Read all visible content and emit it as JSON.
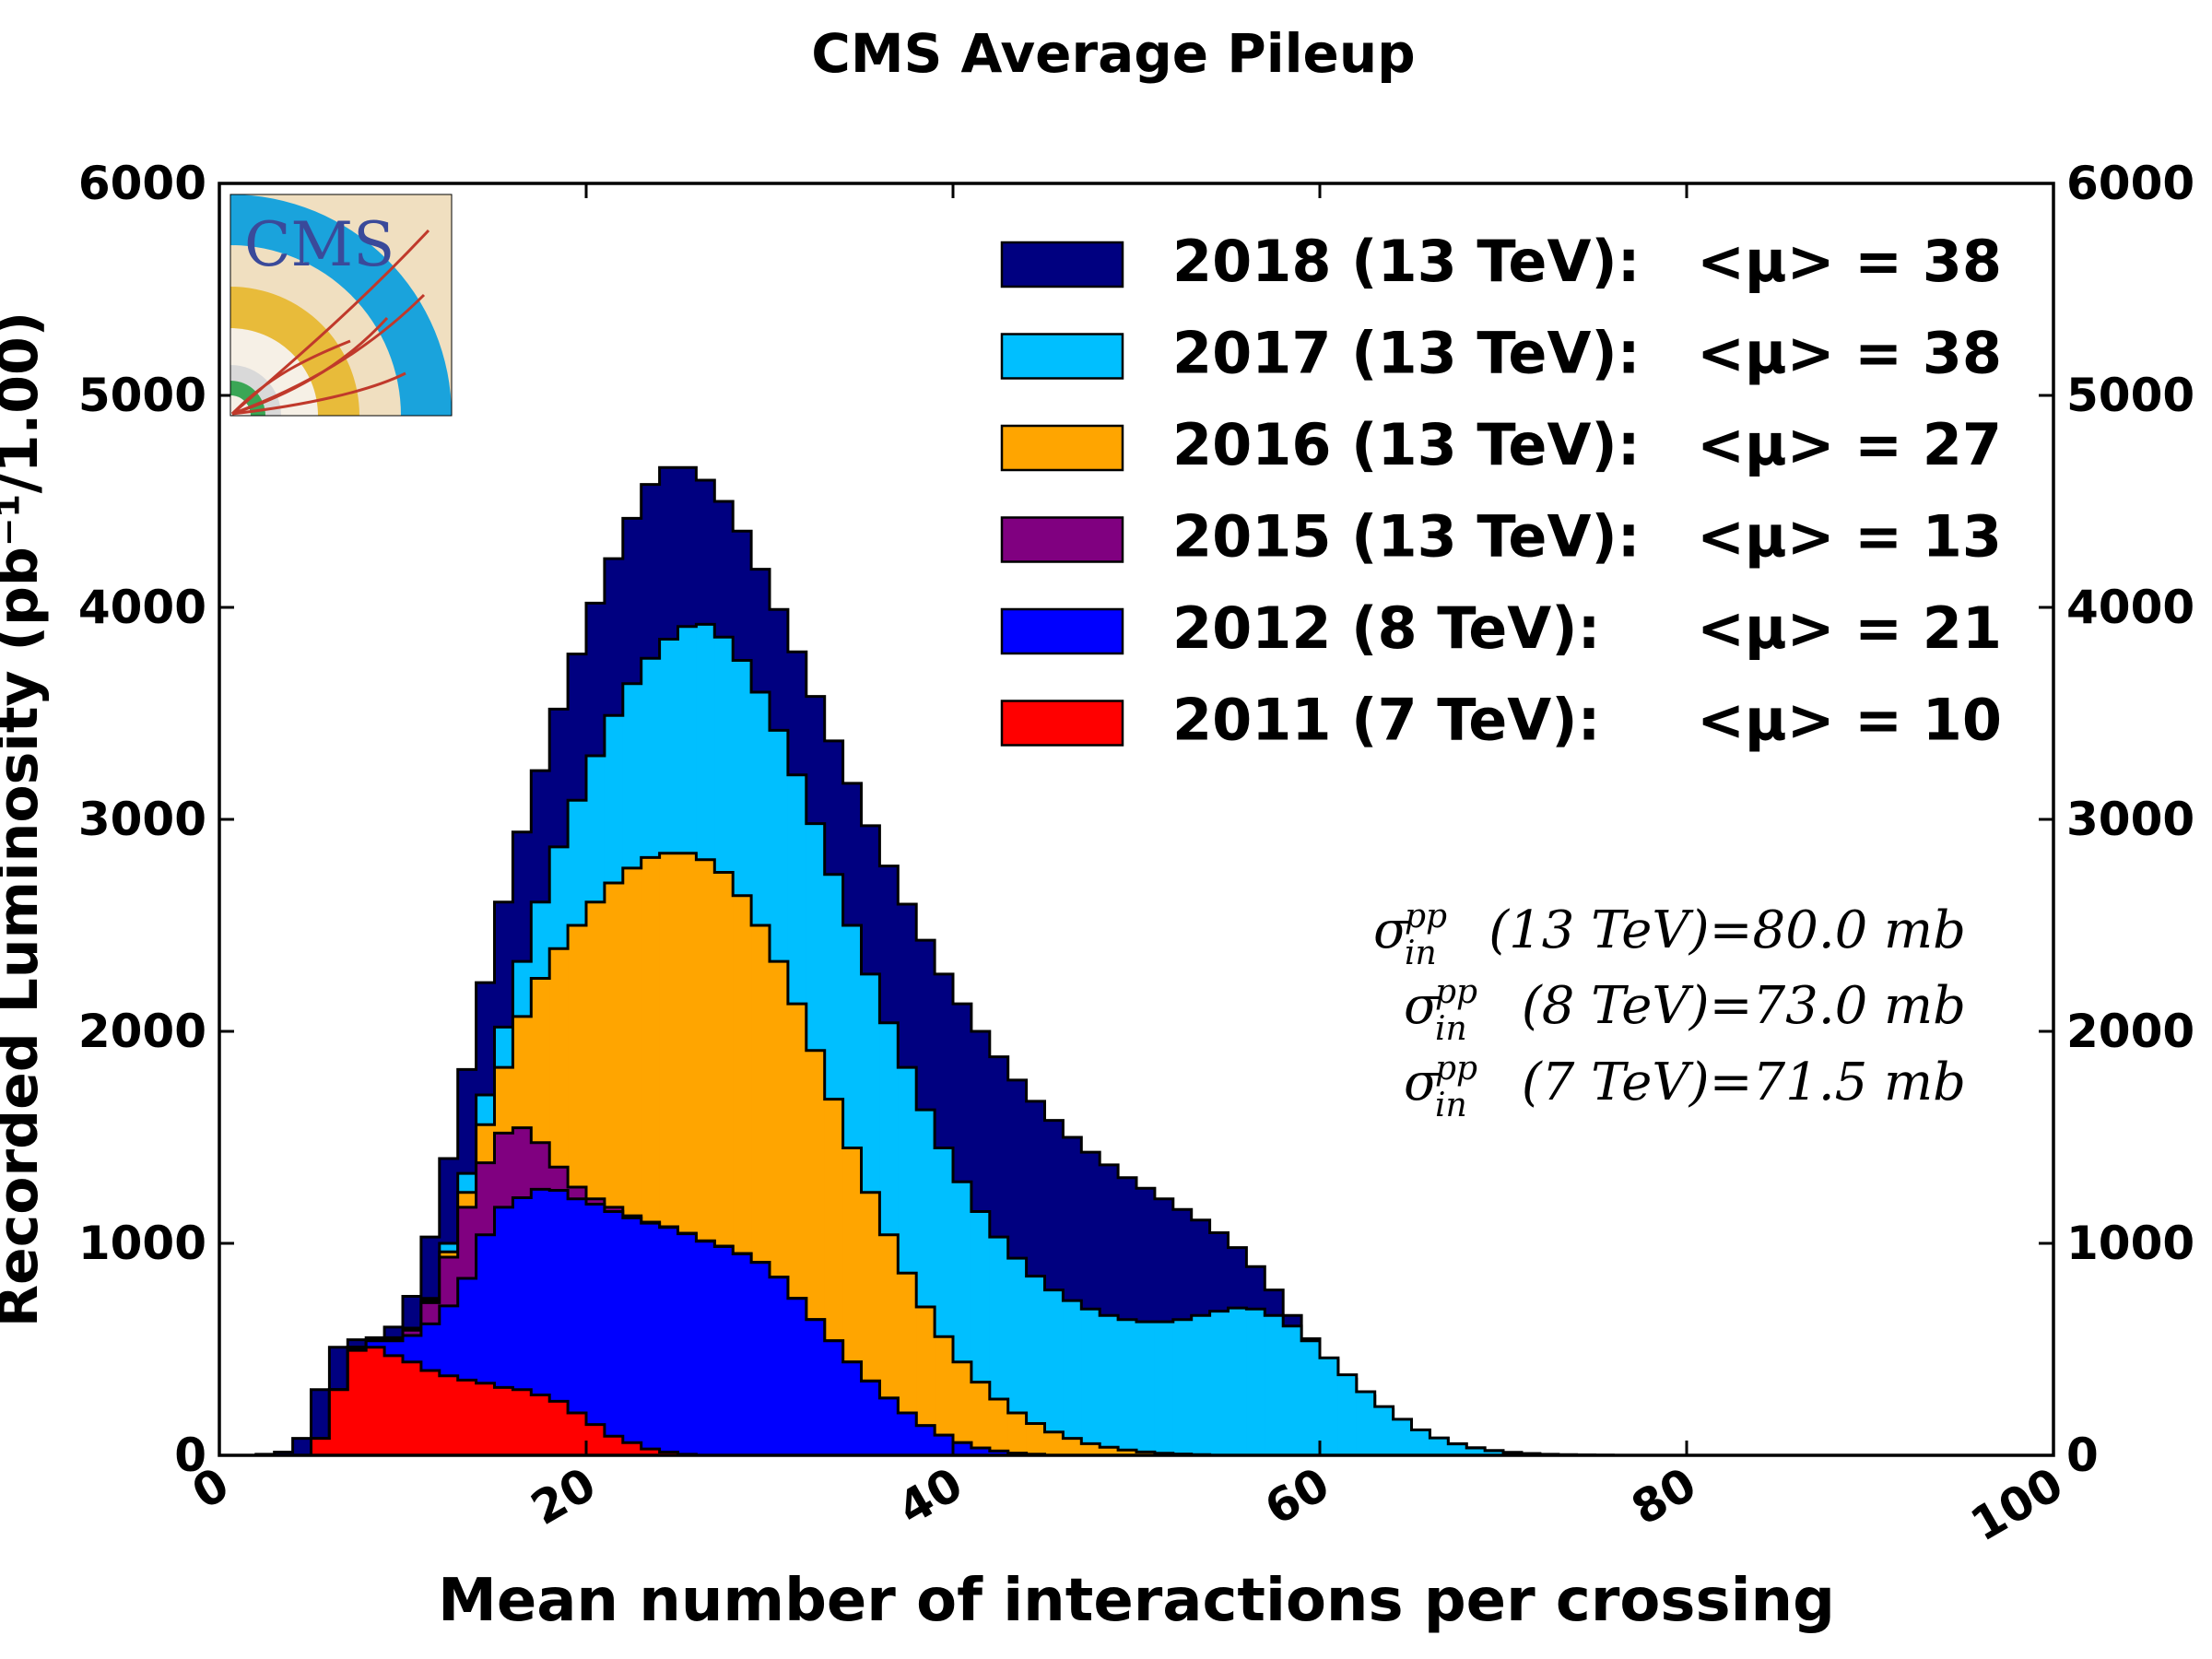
{
  "chart_data": {
    "type": "area",
    "title": "CMS Average Pileup",
    "xlabel": "Mean number of interactions per crossing",
    "ylabel": "Recorded Luminosity (pb⁻¹/1.00)",
    "xlim": [
      0,
      100
    ],
    "ylim": [
      0,
      6000
    ],
    "x_ticks": [
      "0",
      "20",
      "40",
      "60",
      "80",
      "100"
    ],
    "y_ticks": [
      "0",
      "1000",
      "2000",
      "3000",
      "4000",
      "5000",
      "6000"
    ],
    "y_ticks_right": [
      "0",
      "1000",
      "2000",
      "3000",
      "4000",
      "5000",
      "6000"
    ],
    "grid": false,
    "stacked": true,
    "legend_position": "top-right",
    "logo_text": "CMS",
    "bin_width": 1,
    "series": [
      {
        "name": "2011 (7 TeV):",
        "mu_label": "<μ> = 10",
        "color": "#ff0000",
        "bins": [
          [
            5,
            80
          ],
          [
            6,
            310
          ],
          [
            7,
            495
          ],
          [
            8,
            510
          ],
          [
            9,
            470
          ],
          [
            10,
            440
          ],
          [
            11,
            400
          ],
          [
            12,
            375
          ],
          [
            13,
            355
          ],
          [
            14,
            340
          ],
          [
            15,
            320
          ],
          [
            16,
            310
          ],
          [
            17,
            285
          ],
          [
            18,
            255
          ],
          [
            19,
            200
          ],
          [
            20,
            145
          ],
          [
            21,
            90
          ],
          [
            22,
            60
          ],
          [
            23,
            30
          ],
          [
            24,
            15
          ],
          [
            25,
            5
          ]
        ]
      },
      {
        "name": "2012 (8 TeV):",
        "mu_label": "<μ> = 21",
        "color": "#0000ff",
        "bins": [
          [
            5,
            80
          ],
          [
            6,
            310
          ],
          [
            7,
            505
          ],
          [
            8,
            540
          ],
          [
            9,
            540
          ],
          [
            10,
            565
          ],
          [
            11,
            620
          ],
          [
            12,
            705
          ],
          [
            13,
            835
          ],
          [
            14,
            1040
          ],
          [
            15,
            1170
          ],
          [
            16,
            1215
          ],
          [
            17,
            1255
          ],
          [
            18,
            1250
          ],
          [
            19,
            1210
          ],
          [
            20,
            1185
          ],
          [
            21,
            1150
          ],
          [
            22,
            1120
          ],
          [
            23,
            1095
          ],
          [
            24,
            1075
          ],
          [
            25,
            1045
          ],
          [
            26,
            1010
          ],
          [
            27,
            985
          ],
          [
            28,
            950
          ],
          [
            29,
            910
          ],
          [
            30,
            840
          ],
          [
            31,
            740
          ],
          [
            32,
            640
          ],
          [
            33,
            540
          ],
          [
            34,
            440
          ],
          [
            35,
            350
          ],
          [
            36,
            270
          ],
          [
            37,
            200
          ],
          [
            38,
            140
          ],
          [
            39,
            95
          ],
          [
            40,
            60
          ],
          [
            41,
            35
          ],
          [
            42,
            20
          ],
          [
            43,
            10
          ],
          [
            44,
            5
          ]
        ]
      },
      {
        "name": "2015 (13 TeV):",
        "mu_label": "<μ> = 13",
        "color": "#800080",
        "bins": [
          [
            5,
            80
          ],
          [
            6,
            310
          ],
          [
            7,
            510
          ],
          [
            8,
            545
          ],
          [
            9,
            550
          ],
          [
            10,
            590
          ],
          [
            11,
            720
          ],
          [
            12,
            935
          ],
          [
            13,
            1170
          ],
          [
            14,
            1380
          ],
          [
            15,
            1520
          ],
          [
            16,
            1545
          ],
          [
            17,
            1475
          ],
          [
            18,
            1360
          ],
          [
            19,
            1265
          ],
          [
            20,
            1210
          ],
          [
            21,
            1170
          ],
          [
            22,
            1130
          ],
          [
            23,
            1100
          ],
          [
            24,
            1078
          ],
          [
            25,
            1048
          ],
          [
            26,
            1012
          ],
          [
            27,
            987
          ],
          [
            28,
            952
          ],
          [
            29,
            911
          ],
          [
            30,
            841
          ],
          [
            31,
            741
          ],
          [
            32,
            641
          ],
          [
            33,
            541
          ],
          [
            34,
            441
          ],
          [
            35,
            351
          ],
          [
            36,
            270
          ],
          [
            37,
            200
          ],
          [
            38,
            140
          ],
          [
            39,
            95
          ],
          [
            40,
            60
          ],
          [
            41,
            35
          ],
          [
            42,
            20
          ],
          [
            43,
            10
          ],
          [
            44,
            5
          ]
        ]
      },
      {
        "name": "2016 (13 TeV):",
        "mu_label": "<μ> = 27",
        "color": "#ffa500",
        "bins": [
          [
            5,
            80
          ],
          [
            6,
            310
          ],
          [
            7,
            510
          ],
          [
            8,
            545
          ],
          [
            9,
            550
          ],
          [
            10,
            595
          ],
          [
            11,
            730
          ],
          [
            12,
            960
          ],
          [
            13,
            1240
          ],
          [
            14,
            1560
          ],
          [
            15,
            1830
          ],
          [
            16,
            2070
          ],
          [
            17,
            2250
          ],
          [
            18,
            2390
          ],
          [
            19,
            2500
          ],
          [
            20,
            2610
          ],
          [
            21,
            2700
          ],
          [
            22,
            2770
          ],
          [
            23,
            2820
          ],
          [
            24,
            2840
          ],
          [
            25,
            2840
          ],
          [
            26,
            2810
          ],
          [
            27,
            2750
          ],
          [
            28,
            2640
          ],
          [
            29,
            2500
          ],
          [
            30,
            2330
          ],
          [
            31,
            2130
          ],
          [
            32,
            1910
          ],
          [
            33,
            1680
          ],
          [
            34,
            1450
          ],
          [
            35,
            1240
          ],
          [
            36,
            1040
          ],
          [
            37,
            860
          ],
          [
            38,
            700
          ],
          [
            39,
            560
          ],
          [
            40,
            440
          ],
          [
            41,
            345
          ],
          [
            42,
            265
          ],
          [
            43,
            200
          ],
          [
            44,
            150
          ],
          [
            45,
            110
          ],
          [
            46,
            80
          ],
          [
            47,
            55
          ],
          [
            48,
            38
          ],
          [
            49,
            25
          ],
          [
            50,
            16
          ],
          [
            51,
            10
          ],
          [
            52,
            6
          ],
          [
            53,
            3
          ]
        ]
      },
      {
        "name": "2017 (13 TeV):",
        "mu_label": "<μ> = 38",
        "color": "#00bfff",
        "bins": [
          [
            5,
            80
          ],
          [
            6,
            310
          ],
          [
            7,
            510
          ],
          [
            8,
            545
          ],
          [
            9,
            555
          ],
          [
            10,
            600
          ],
          [
            11,
            740
          ],
          [
            12,
            1000
          ],
          [
            13,
            1330
          ],
          [
            14,
            1700
          ],
          [
            15,
            2020
          ],
          [
            16,
            2330
          ],
          [
            17,
            2610
          ],
          [
            18,
            2870
          ],
          [
            19,
            3090
          ],
          [
            20,
            3300
          ],
          [
            21,
            3490
          ],
          [
            22,
            3640
          ],
          [
            23,
            3760
          ],
          [
            24,
            3850
          ],
          [
            25,
            3910
          ],
          [
            26,
            3920
          ],
          [
            27,
            3860
          ],
          [
            28,
            3750
          ],
          [
            29,
            3600
          ],
          [
            30,
            3420
          ],
          [
            31,
            3210
          ],
          [
            32,
            2980
          ],
          [
            33,
            2740
          ],
          [
            34,
            2500
          ],
          [
            35,
            2270
          ],
          [
            36,
            2040
          ],
          [
            37,
            1830
          ],
          [
            38,
            1630
          ],
          [
            39,
            1450
          ],
          [
            40,
            1290
          ],
          [
            41,
            1150
          ],
          [
            42,
            1030
          ],
          [
            43,
            930
          ],
          [
            44,
            845
          ],
          [
            45,
            780
          ],
          [
            46,
            730
          ],
          [
            47,
            690
          ],
          [
            48,
            660
          ],
          [
            49,
            640
          ],
          [
            50,
            630
          ],
          [
            51,
            630
          ],
          [
            52,
            640
          ],
          [
            53,
            660
          ],
          [
            54,
            680
          ],
          [
            55,
            695
          ],
          [
            56,
            690
          ],
          [
            57,
            660
          ],
          [
            58,
            610
          ],
          [
            59,
            540
          ],
          [
            60,
            460
          ],
          [
            61,
            380
          ],
          [
            62,
            300
          ],
          [
            63,
            230
          ],
          [
            64,
            170
          ],
          [
            65,
            120
          ],
          [
            66,
            82
          ],
          [
            67,
            54
          ],
          [
            68,
            35
          ],
          [
            69,
            22
          ],
          [
            70,
            13
          ],
          [
            71,
            8
          ],
          [
            72,
            4
          ]
        ]
      },
      {
        "name": "2018 (13 TeV):",
        "mu_label": "<μ> = 38",
        "color": "#000080",
        "bins": [
          [
            2,
            5
          ],
          [
            3,
            15
          ],
          [
            4,
            80
          ],
          [
            5,
            310
          ],
          [
            6,
            510
          ],
          [
            7,
            545
          ],
          [
            8,
            555
          ],
          [
            9,
            605
          ],
          [
            10,
            750
          ],
          [
            11,
            1030
          ],
          [
            12,
            1400
          ],
          [
            13,
            1820
          ],
          [
            14,
            2230
          ],
          [
            15,
            2610
          ],
          [
            16,
            2940
          ],
          [
            17,
            3230
          ],
          [
            18,
            3520
          ],
          [
            19,
            3780
          ],
          [
            20,
            4020
          ],
          [
            21,
            4230
          ],
          [
            22,
            4420
          ],
          [
            23,
            4580
          ],
          [
            24,
            4660
          ],
          [
            25,
            4660
          ],
          [
            26,
            4600
          ],
          [
            27,
            4500
          ],
          [
            28,
            4360
          ],
          [
            29,
            4180
          ],
          [
            30,
            3990
          ],
          [
            31,
            3790
          ],
          [
            32,
            3580
          ],
          [
            33,
            3370
          ],
          [
            34,
            3170
          ],
          [
            35,
            2970
          ],
          [
            36,
            2780
          ],
          [
            37,
            2600
          ],
          [
            38,
            2430
          ],
          [
            39,
            2270
          ],
          [
            40,
            2130
          ],
          [
            41,
            2000
          ],
          [
            42,
            1880
          ],
          [
            43,
            1770
          ],
          [
            44,
            1670
          ],
          [
            45,
            1580
          ],
          [
            46,
            1500
          ],
          [
            47,
            1430
          ],
          [
            48,
            1370
          ],
          [
            49,
            1310
          ],
          [
            50,
            1260
          ],
          [
            51,
            1210
          ],
          [
            52,
            1160
          ],
          [
            53,
            1110
          ],
          [
            54,
            1050
          ],
          [
            55,
            980
          ],
          [
            56,
            890
          ],
          [
            57,
            780
          ],
          [
            58,
            660
          ],
          [
            59,
            550
          ],
          [
            60,
            450
          ],
          [
            61,
            360
          ],
          [
            62,
            280
          ],
          [
            63,
            215
          ],
          [
            64,
            160
          ],
          [
            65,
            115
          ],
          [
            66,
            80
          ],
          [
            67,
            55
          ],
          [
            68,
            36
          ],
          [
            69,
            23
          ],
          [
            70,
            14
          ],
          [
            71,
            8
          ],
          [
            72,
            5
          ],
          [
            73,
            3
          ],
          [
            74,
            2
          ],
          [
            75,
            1
          ]
        ]
      }
    ],
    "annotations": [
      {
        "sigma": "σ",
        "sup": "pp",
        "sub": "in",
        "text": "(13 TeV)=80.0 mb"
      },
      {
        "sigma": "σ",
        "sup": "pp",
        "sub": "in",
        "text": "(8 TeV)=73.0 mb"
      },
      {
        "sigma": "σ",
        "sup": "pp",
        "sub": "in",
        "text": "(7 TeV)=71.5 mb"
      }
    ]
  }
}
